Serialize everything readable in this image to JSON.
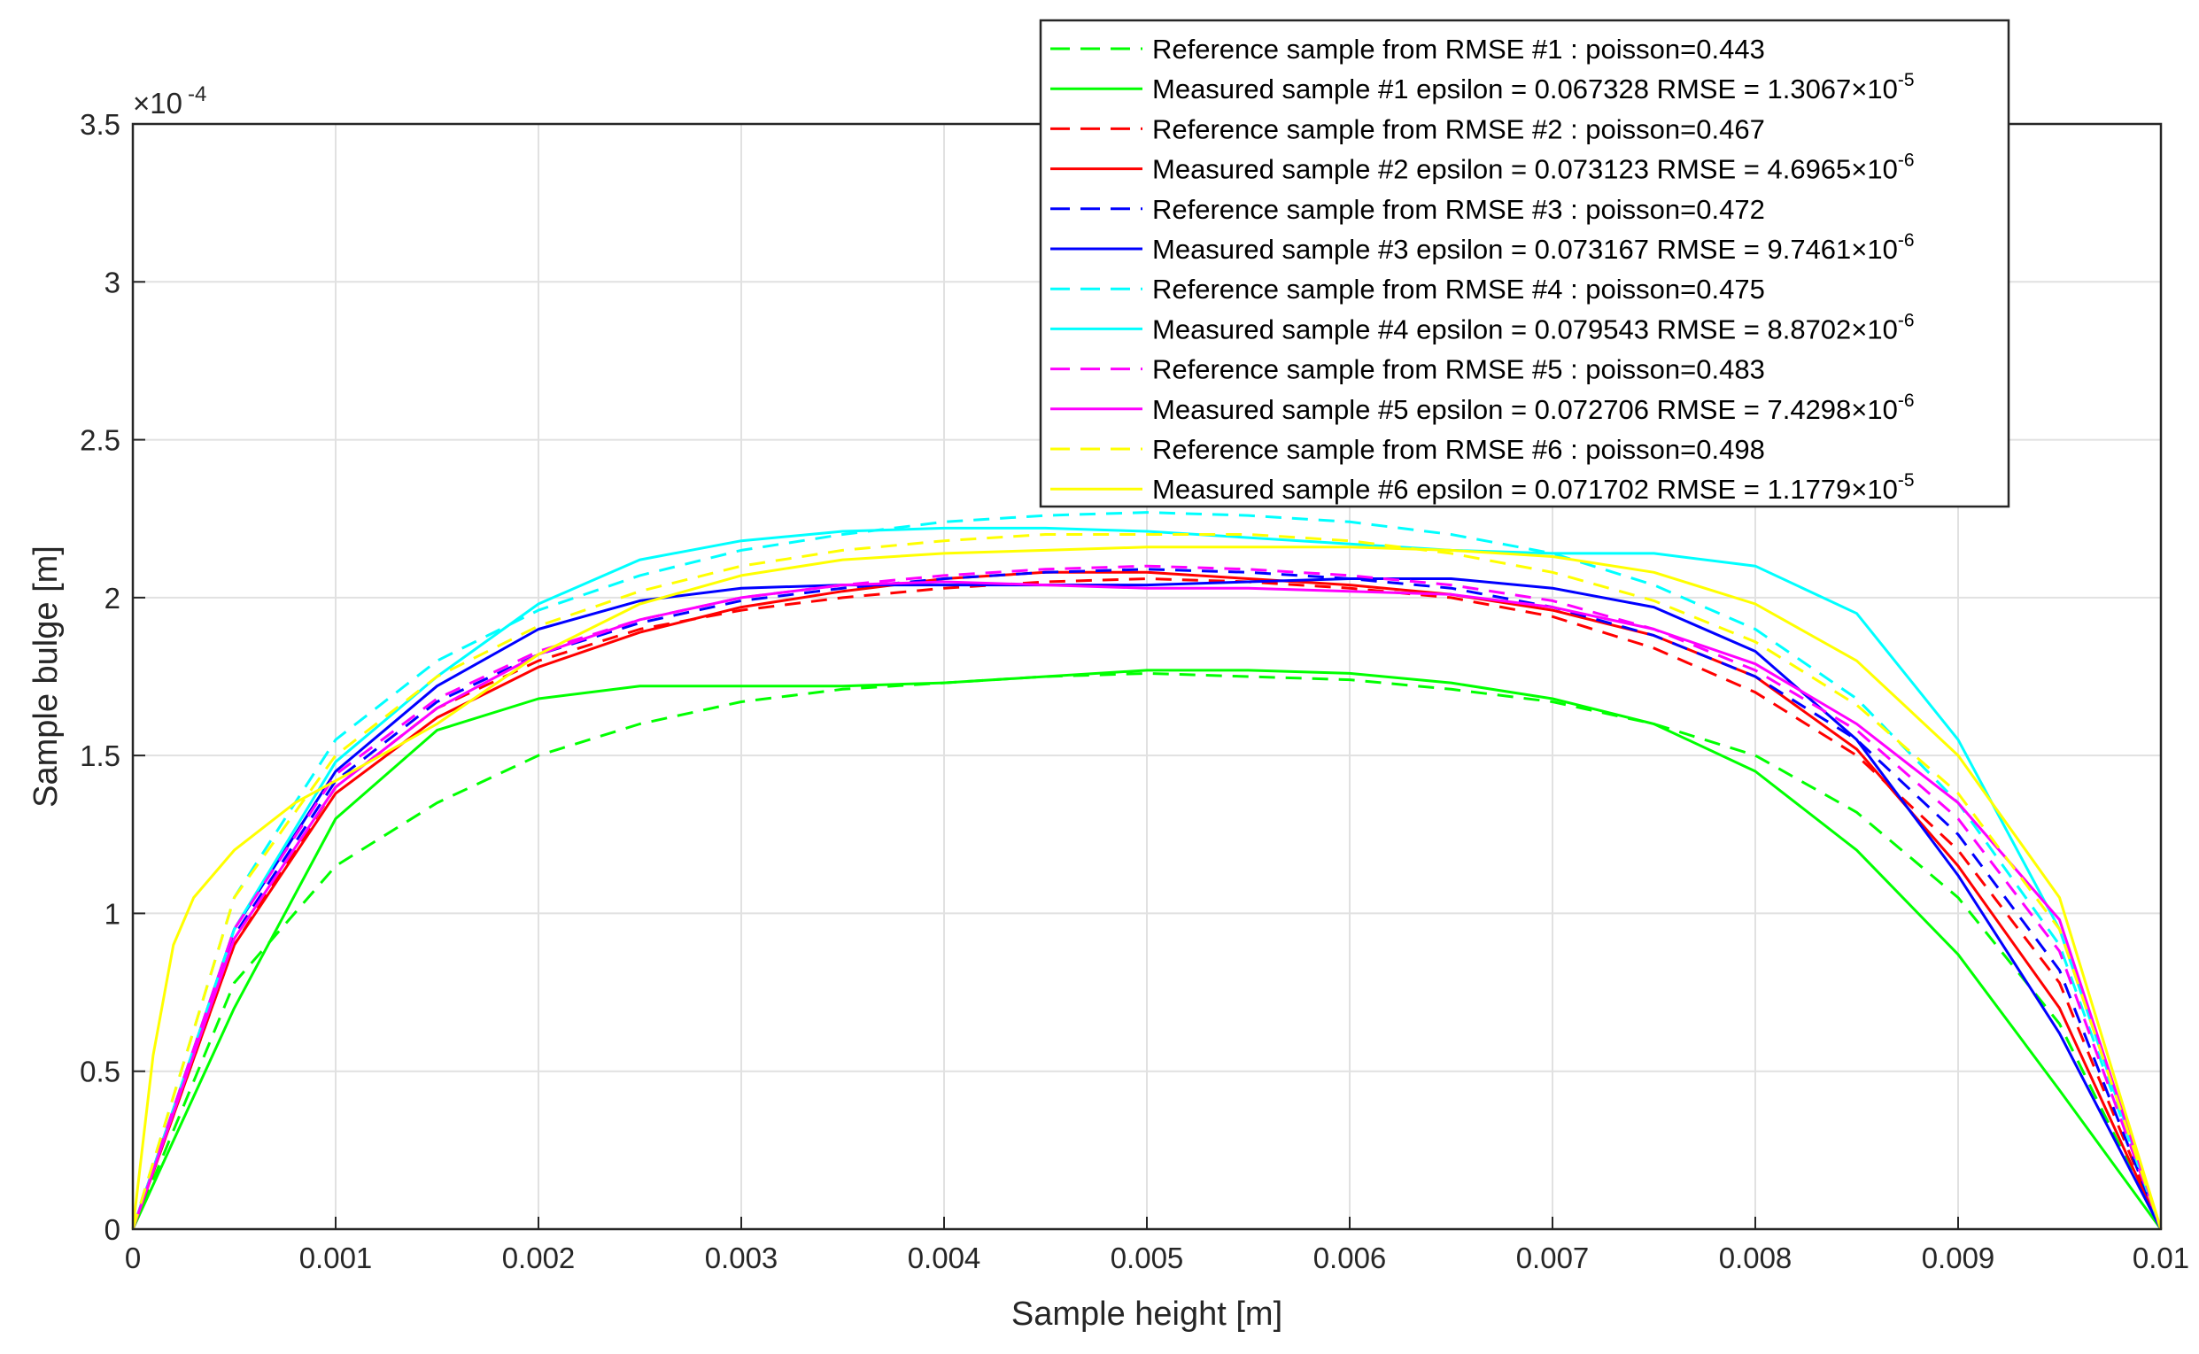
{
  "chart_data": {
    "type": "line",
    "xlabel": "Sample height [m]",
    "ylabel": "Sample bulge [m]",
    "y_exponent": "-4",
    "xlim": [
      0,
      0.01
    ],
    "ylim": [
      0,
      3.5
    ],
    "grid": true,
    "legend_position": "top-right",
    "x_ticks": [
      "0",
      "0.001",
      "0.002",
      "0.003",
      "0.004",
      "0.005",
      "0.006",
      "0.007",
      "0.008",
      "0.009",
      "0.01"
    ],
    "y_ticks": [
      "0",
      "0.5",
      "1",
      "1.5",
      "2",
      "2.5",
      "3",
      "3.5"
    ],
    "series": [
      {
        "legend_text": "Reference sample from RMSE #1 : poisson=0.443",
        "color": "#00ff00",
        "dashed": true,
        "x": [
          0,
          0.0005,
          0.001,
          0.0015,
          0.002,
          0.0025,
          0.003,
          0.0035,
          0.004,
          0.0045,
          0.005,
          0.0055,
          0.006,
          0.0065,
          0.007,
          0.0075,
          0.008,
          0.0085,
          0.009,
          0.0095,
          0.01
        ],
        "y": [
          0,
          0.78,
          1.15,
          1.35,
          1.5,
          1.6,
          1.67,
          1.71,
          1.73,
          1.75,
          1.76,
          1.75,
          1.74,
          1.71,
          1.67,
          1.6,
          1.5,
          1.32,
          1.05,
          0.65,
          0
        ]
      },
      {
        "legend_text": "Measured sample #1 epsilon = 0.067328  RMSE = 1.3067×10",
        "rmse_exponent": "-5",
        "color": "#00ff00",
        "dashed": false,
        "x": [
          0,
          0.0005,
          0.001,
          0.0015,
          0.002,
          0.0025,
          0.003,
          0.0035,
          0.004,
          0.0045,
          0.005,
          0.0055,
          0.006,
          0.0065,
          0.007,
          0.0075,
          0.008,
          0.0085,
          0.009,
          0.0095,
          0.01
        ],
        "y": [
          0,
          0.7,
          1.3,
          1.58,
          1.68,
          1.72,
          1.72,
          1.72,
          1.73,
          1.75,
          1.77,
          1.77,
          1.76,
          1.73,
          1.68,
          1.6,
          1.45,
          1.2,
          0.87,
          0.44,
          0
        ]
      },
      {
        "legend_text": "Reference sample from RMSE #2 : poisson=0.467",
        "color": "#ff0000",
        "dashed": true,
        "x": [
          0,
          0.0005,
          0.001,
          0.0015,
          0.002,
          0.0025,
          0.003,
          0.0035,
          0.004,
          0.0045,
          0.005,
          0.0055,
          0.006,
          0.0065,
          0.007,
          0.0075,
          0.008,
          0.0085,
          0.009,
          0.0095,
          0.01
        ],
        "y": [
          0,
          0.9,
          1.4,
          1.65,
          1.8,
          1.9,
          1.96,
          2.0,
          2.03,
          2.05,
          2.06,
          2.05,
          2.03,
          2.0,
          1.94,
          1.84,
          1.7,
          1.5,
          1.2,
          0.78,
          0
        ]
      },
      {
        "legend_text": "Measured sample #2 epsilon = 0.073123  RMSE = 4.6965×10",
        "rmse_exponent": "-6",
        "color": "#ff0000",
        "dashed": false,
        "x": [
          0,
          0.0005,
          0.001,
          0.0015,
          0.002,
          0.0025,
          0.003,
          0.0035,
          0.004,
          0.0045,
          0.005,
          0.0055,
          0.006,
          0.0065,
          0.007,
          0.0075,
          0.008,
          0.0085,
          0.009,
          0.0095,
          0.01
        ],
        "y": [
          0,
          0.9,
          1.38,
          1.62,
          1.78,
          1.89,
          1.97,
          2.02,
          2.06,
          2.08,
          2.08,
          2.06,
          2.04,
          2.01,
          1.96,
          1.88,
          1.75,
          1.52,
          1.15,
          0.7,
          0
        ]
      },
      {
        "legend_text": "Reference sample from RMSE #3 : poisson=0.472",
        "color": "#0000ff",
        "dashed": true,
        "x": [
          0,
          0.0005,
          0.001,
          0.0015,
          0.002,
          0.0025,
          0.003,
          0.0035,
          0.004,
          0.0045,
          0.005,
          0.0055,
          0.006,
          0.0065,
          0.007,
          0.0075,
          0.008,
          0.0085,
          0.009,
          0.0095,
          0.01
        ],
        "y": [
          0,
          0.93,
          1.42,
          1.67,
          1.82,
          1.92,
          1.99,
          2.03,
          2.06,
          2.08,
          2.09,
          2.08,
          2.06,
          2.03,
          1.97,
          1.88,
          1.75,
          1.55,
          1.25,
          0.82,
          0
        ]
      },
      {
        "legend_text": "Measured sample #3 epsilon = 0.073167  RMSE = 9.7461×10",
        "rmse_exponent": "-6",
        "color": "#0000ff",
        "dashed": false,
        "x": [
          0,
          0.0005,
          0.001,
          0.0015,
          0.002,
          0.0025,
          0.003,
          0.0035,
          0.004,
          0.0045,
          0.005,
          0.0055,
          0.006,
          0.0065,
          0.007,
          0.0075,
          0.008,
          0.0085,
          0.009,
          0.0095,
          0.01
        ],
        "y": [
          0,
          0.95,
          1.45,
          1.72,
          1.9,
          1.99,
          2.03,
          2.04,
          2.04,
          2.04,
          2.04,
          2.05,
          2.06,
          2.06,
          2.03,
          1.97,
          1.83,
          1.55,
          1.12,
          0.62,
          0
        ]
      },
      {
        "legend_text": "Reference sample from RMSE #4 : poisson=0.475",
        "color": "#00ffff",
        "dashed": true,
        "x": [
          0,
          0.0005,
          0.001,
          0.0015,
          0.002,
          0.0025,
          0.003,
          0.0035,
          0.004,
          0.0045,
          0.005,
          0.0055,
          0.006,
          0.0065,
          0.007,
          0.0075,
          0.008,
          0.0085,
          0.009,
          0.0095,
          0.01
        ],
        "y": [
          0,
          1.05,
          1.55,
          1.8,
          1.96,
          2.07,
          2.15,
          2.2,
          2.24,
          2.26,
          2.27,
          2.26,
          2.24,
          2.2,
          2.14,
          2.04,
          1.9,
          1.68,
          1.35,
          0.9,
          0
        ]
      },
      {
        "legend_text": "Measured sample #4 epsilon = 0.079543  RMSE = 8.8702×10",
        "rmse_exponent": "-6",
        "color": "#00ffff",
        "dashed": false,
        "x": [
          0,
          0.0005,
          0.001,
          0.0015,
          0.002,
          0.0025,
          0.003,
          0.0035,
          0.004,
          0.0045,
          0.005,
          0.0055,
          0.006,
          0.0065,
          0.007,
          0.0075,
          0.008,
          0.0085,
          0.009,
          0.0095,
          0.01
        ],
        "y": [
          0,
          0.95,
          1.48,
          1.75,
          1.98,
          2.12,
          2.18,
          2.21,
          2.22,
          2.22,
          2.21,
          2.19,
          2.17,
          2.15,
          2.14,
          2.14,
          2.1,
          1.95,
          1.55,
          0.95,
          0
        ]
      },
      {
        "legend_text": "Reference sample from RMSE #5 : poisson=0.483",
        "color": "#ff00ff",
        "dashed": true,
        "x": [
          0,
          0.0005,
          0.001,
          0.0015,
          0.002,
          0.0025,
          0.003,
          0.0035,
          0.004,
          0.0045,
          0.005,
          0.0055,
          0.006,
          0.0065,
          0.007,
          0.0075,
          0.008,
          0.0085,
          0.009,
          0.0095,
          0.01
        ],
        "y": [
          0,
          0.95,
          1.44,
          1.68,
          1.83,
          1.93,
          2.0,
          2.04,
          2.07,
          2.09,
          2.1,
          2.09,
          2.07,
          2.04,
          1.99,
          1.9,
          1.77,
          1.58,
          1.3,
          0.88,
          0
        ]
      },
      {
        "legend_text": "Measured sample #5 epsilon = 0.072706  RMSE = 7.4298×10",
        "rmse_exponent": "-6",
        "color": "#ff00ff",
        "dashed": false,
        "x": [
          0,
          0.0005,
          0.001,
          0.0015,
          0.002,
          0.0025,
          0.003,
          0.0035,
          0.004,
          0.0045,
          0.005,
          0.0055,
          0.006,
          0.0065,
          0.007,
          0.0075,
          0.008,
          0.0085,
          0.009,
          0.0095,
          0.01
        ],
        "y": [
          0,
          0.92,
          1.4,
          1.65,
          1.82,
          1.93,
          2.0,
          2.04,
          2.05,
          2.04,
          2.03,
          2.03,
          2.02,
          2.01,
          1.97,
          1.9,
          1.79,
          1.6,
          1.35,
          0.98,
          0
        ]
      },
      {
        "legend_text": "Reference sample from RMSE #6 : poisson=0.498",
        "color": "#ffff00",
        "dashed": true,
        "x": [
          0,
          0.0005,
          0.001,
          0.0015,
          0.002,
          0.0025,
          0.003,
          0.0035,
          0.004,
          0.0045,
          0.005,
          0.0055,
          0.006,
          0.0065,
          0.007,
          0.0075,
          0.008,
          0.0085,
          0.009,
          0.0095,
          0.01
        ],
        "y": [
          0,
          1.05,
          1.5,
          1.75,
          1.91,
          2.02,
          2.1,
          2.15,
          2.18,
          2.2,
          2.2,
          2.2,
          2.18,
          2.14,
          2.08,
          1.99,
          1.86,
          1.66,
          1.38,
          0.95,
          0
        ]
      },
      {
        "legend_text": "Measured sample #6 epsilon = 0.071702  RMSE = 1.1779×10",
        "rmse_exponent": "-5",
        "color": "#ffff00",
        "dashed": false,
        "x": [
          0,
          0.0001,
          0.0002,
          0.0003,
          0.0005,
          0.0008,
          0.001,
          0.0015,
          0.002,
          0.0025,
          0.003,
          0.0035,
          0.004,
          0.0045,
          0.005,
          0.0055,
          0.006,
          0.0065,
          0.007,
          0.0075,
          0.008,
          0.0085,
          0.009,
          0.0095,
          0.01
        ],
        "y": [
          0,
          0.55,
          0.9,
          1.05,
          1.2,
          1.35,
          1.42,
          1.6,
          1.82,
          1.98,
          2.07,
          2.12,
          2.14,
          2.15,
          2.16,
          2.16,
          2.16,
          2.15,
          2.13,
          2.08,
          1.98,
          1.8,
          1.5,
          1.05,
          0
        ]
      }
    ]
  }
}
